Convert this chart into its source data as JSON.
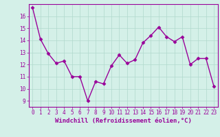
{
  "x": [
    0,
    1,
    2,
    3,
    4,
    5,
    6,
    7,
    8,
    9,
    10,
    11,
    12,
    13,
    14,
    15,
    16,
    17,
    18,
    19,
    20,
    21,
    22,
    23
  ],
  "y": [
    16.7,
    14.1,
    12.9,
    12.1,
    12.3,
    11.0,
    11.0,
    9.0,
    10.6,
    10.4,
    11.9,
    12.8,
    12.1,
    12.4,
    13.8,
    14.4,
    15.1,
    14.3,
    13.9,
    14.3,
    12.0,
    12.5,
    12.5,
    10.2
  ],
  "line_color": "#990099",
  "marker": "D",
  "markersize": 2.5,
  "linewidth": 1.0,
  "xlabel": "Windchill (Refroidissement éolien,°C)",
  "xlabel_fontsize": 6.5,
  "xlabel_color": "#990099",
  "yticks": [
    9,
    10,
    11,
    12,
    13,
    14,
    15,
    16
  ],
  "xticks": [
    0,
    1,
    2,
    3,
    4,
    5,
    6,
    7,
    8,
    9,
    10,
    11,
    12,
    13,
    14,
    15,
    16,
    17,
    18,
    19,
    20,
    21,
    22,
    23
  ],
  "ylim": [
    8.5,
    17.0
  ],
  "xlim": [
    -0.5,
    23.5
  ],
  "grid_color": "#b0d8cc",
  "background_color": "#d4f0e8",
  "tick_fontsize": 5.5,
  "tick_color": "#990099",
  "spine_color": "#990099"
}
